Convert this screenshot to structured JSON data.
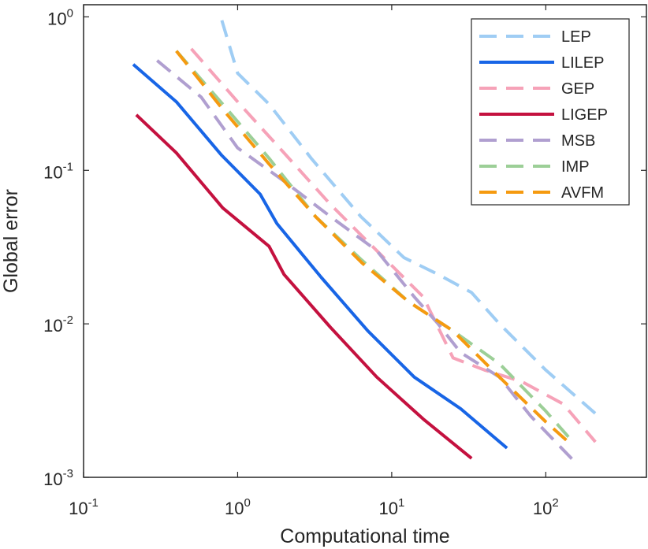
{
  "chart_data": {
    "type": "line",
    "xscale": "log",
    "yscale": "log",
    "xlabel": "Computational time",
    "ylabel": "Global error",
    "xlim": [
      0.1,
      450
    ],
    "ylim": [
      0.001,
      1.2
    ],
    "xticks": [
      {
        "value": 0.1,
        "base": "10",
        "exp": "-1"
      },
      {
        "value": 1,
        "base": "10",
        "exp": "0"
      },
      {
        "value": 10,
        "base": "10",
        "exp": "1"
      },
      {
        "value": 100,
        "base": "10",
        "exp": "2"
      }
    ],
    "yticks": [
      {
        "value": 0.001,
        "base": "10",
        "exp": "-3"
      },
      {
        "value": 0.01,
        "base": "10",
        "exp": "-2"
      },
      {
        "value": 0.1,
        "base": "10",
        "exp": "-1"
      },
      {
        "value": 1,
        "base": "10",
        "exp": "0"
      }
    ],
    "legend_position": "top-right",
    "series": [
      {
        "name": "LEP",
        "color": "#9fcdf4",
        "dashed": true,
        "x": [
          0.79,
          1.0,
          1.6,
          3.0,
          6.3,
          12.0,
          20.0,
          33.0,
          50.0,
          100.0,
          220.0
        ],
        "y": [
          0.95,
          0.43,
          0.27,
          0.12,
          0.05,
          0.027,
          0.021,
          0.016,
          0.01,
          0.005,
          0.0025
        ]
      },
      {
        "name": "LILEP",
        "color": "#1865e6",
        "dashed": false,
        "x": [
          0.21,
          0.4,
          0.79,
          1.4,
          1.8,
          3.5,
          7.0,
          14.0,
          28.0,
          56.0
        ],
        "y": [
          0.49,
          0.28,
          0.125,
          0.07,
          0.045,
          0.02,
          0.009,
          0.0045,
          0.0028,
          0.00155
        ]
      },
      {
        "name": "GEP",
        "color": "#f6a2b8",
        "dashed": true,
        "x": [
          0.5,
          1.0,
          2.0,
          4.0,
          8.0,
          16.0,
          25.0,
          40.0,
          70.0,
          130.0,
          210.0
        ],
        "y": [
          0.62,
          0.28,
          0.13,
          0.06,
          0.03,
          0.015,
          0.006,
          0.005,
          0.0042,
          0.003,
          0.0017
        ]
      },
      {
        "name": "LIGEP",
        "color": "#c4113f",
        "dashed": false,
        "x": [
          0.22,
          0.4,
          0.8,
          1.6,
          2.0,
          4.0,
          8.0,
          16.0,
          33.0
        ],
        "y": [
          0.23,
          0.13,
          0.057,
          0.032,
          0.021,
          0.0095,
          0.0045,
          0.0024,
          0.00133
        ]
      },
      {
        "name": "MSB",
        "color": "#b09fd0",
        "dashed": true,
        "x": [
          0.3,
          0.58,
          1.0,
          2.0,
          4.0,
          8.0,
          14.0,
          20.0,
          28.0,
          50.0,
          80.0,
          150.0
        ],
        "y": [
          0.52,
          0.3,
          0.14,
          0.085,
          0.05,
          0.03,
          0.015,
          0.01,
          0.0065,
          0.0045,
          0.0025,
          0.0013
        ]
      },
      {
        "name": "IMP",
        "color": "#9ccf97",
        "dashed": true,
        "x": [
          0.4,
          0.8,
          1.6,
          3.2,
          6.4,
          12.8,
          25.0,
          50.0,
          100.0,
          150.0
        ],
        "y": [
          0.6,
          0.27,
          0.12,
          0.05,
          0.026,
          0.014,
          0.009,
          0.0055,
          0.0027,
          0.0017
        ]
      },
      {
        "name": "AVFM",
        "color": "#f59a10",
        "dashed": true,
        "x": [
          0.4,
          0.8,
          1.6,
          3.2,
          6.4,
          12.8,
          25.0,
          50.0,
          100.0,
          150.0
        ],
        "y": [
          0.6,
          0.25,
          0.11,
          0.05,
          0.025,
          0.014,
          0.009,
          0.0045,
          0.0023,
          0.0016
        ]
      }
    ]
  }
}
